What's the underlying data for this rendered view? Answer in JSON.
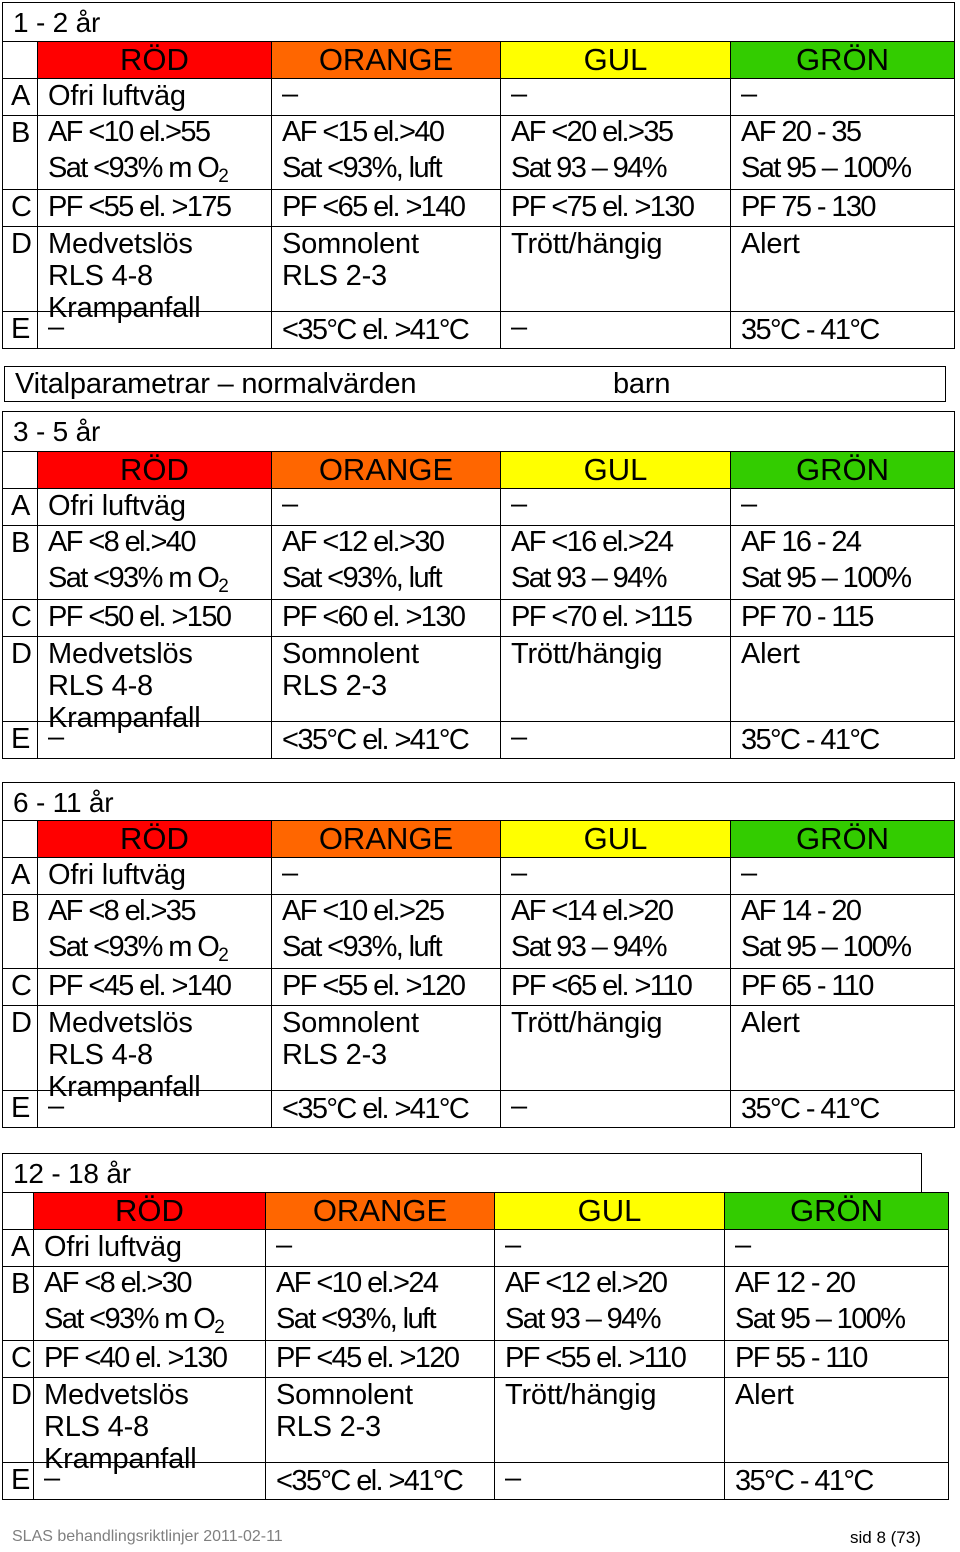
{
  "colors": {
    "rod": "#ff0000",
    "orange": "#ff6600",
    "gul": "#ffff00",
    "gron": "#33cc00"
  },
  "headers": [
    "RÖD",
    "ORANGE",
    "GUL",
    "GRÖN"
  ],
  "common": {
    "a_label": "A",
    "b_label": "B",
    "c_label": "C",
    "d_label": "D",
    "e_label": "E",
    "a_text": "Ofri luftväg",
    "dash": "–",
    "sat_red_a": "Sat <93% m O",
    "sat_red_sub": "2",
    "sat_orange": "Sat <93%, luft",
    "sat_yellow": "Sat 93 – 94%",
    "sat_green": "Sat 95 – 100%",
    "d_red_1": "Medvetslös",
    "d_red_2": "RLS 4-8",
    "d_red_3": "Krampanfall",
    "d_orange_1": "Somnolent",
    "d_orange_2": "RLS 2-3",
    "d_yellow": "Trött/hängig",
    "d_green": "Alert",
    "e_orange": "<35°C el. >41°C",
    "e_green": "35°C - 41°C"
  },
  "sections": [
    {
      "title": "1 - 2 år",
      "b": [
        "AF <10 el.>55",
        "AF <15 el.>40",
        "AF <20 el.>35",
        "AF 20 - 35"
      ],
      "c": [
        "PF <55 el. >175",
        "PF <65 el. >140",
        "PF <75 el. >130",
        "PF 75 - 130"
      ]
    },
    {
      "title": "3 - 5 år",
      "b": [
        "AF <8 el.>40",
        "AF <12 el.>30",
        "AF <16 el.>24",
        "AF 16 - 24"
      ],
      "c": [
        "PF <50 el. >150",
        "PF <60 el. >130",
        "PF <70 el. >115",
        "PF 70 - 115"
      ]
    },
    {
      "title": "6 - 11 år",
      "b": [
        "AF <8 el.>35",
        "AF <10 el.>25",
        "AF <14 el.>20",
        "AF 14 - 20"
      ],
      "c": [
        "PF <45 el. >140",
        "PF <55 el. >120",
        "PF <65 el. >110",
        "PF 65 - 110"
      ]
    },
    {
      "title": "12 - 18 år",
      "b": [
        "AF <8 el.>30",
        "AF <10 el.>24",
        "AF <12 el.>20",
        "AF 12 - 20"
      ],
      "c": [
        "PF <40 el. >130",
        "PF <45 el. >120",
        "PF <55 el. >110",
        "PF 55 - 110"
      ]
    }
  ],
  "vital": {
    "left": "Vitalparametrar – normalvärden",
    "right": "barn"
  },
  "footer": {
    "left": "SLAS behandlingsriktlinjer 2011-02-11",
    "right": "sid 8 (73)"
  }
}
